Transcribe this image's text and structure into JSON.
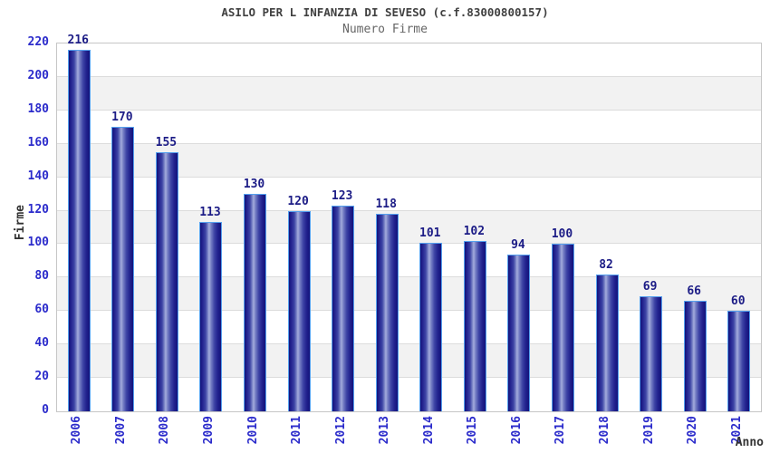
{
  "chart_data": {
    "type": "bar",
    "title": "ASILO PER L INFANZIA DI SEVESO (c.f.83000800157)",
    "subtitle": "Numero Firme",
    "xlabel": "Anno",
    "ylabel": "Firme",
    "categories": [
      "2006",
      "2007",
      "2008",
      "2009",
      "2010",
      "2011",
      "2012",
      "2013",
      "2014",
      "2015",
      "2016",
      "2017",
      "2018",
      "2019",
      "2020",
      "2021"
    ],
    "values": [
      216,
      170,
      155,
      113,
      130,
      120,
      123,
      118,
      101,
      102,
      94,
      100,
      82,
      69,
      66,
      60
    ],
    "ylim": [
      0,
      220
    ],
    "y_ticks": [
      0,
      20,
      40,
      60,
      80,
      100,
      120,
      140,
      160,
      180,
      200,
      220
    ],
    "grid": "horizontal alternating bands with gridlines every 20",
    "legend": "none",
    "colors": {
      "bar_dark": "#13137a",
      "bar_highlight": "#a4acdd",
      "bar_border": "#55a0ee",
      "tick_label": "#2b2bcb",
      "value_label": "#1c1c86",
      "title": "#404040",
      "subtitle": "#666666",
      "axis_title": "#333333",
      "band_gray": "#f2f2f2",
      "gridline": "#dcdcdc",
      "plot_border": "#c6c6c6",
      "background": "#ffffff"
    }
  }
}
